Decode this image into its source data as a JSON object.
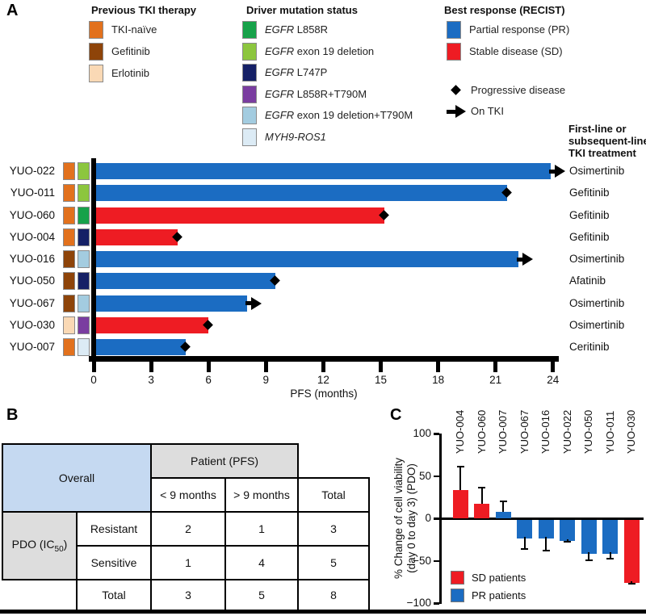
{
  "figure": {
    "panel_a_label": "A",
    "panel_b_label": "B",
    "panel_c_label": "C"
  },
  "colors": {
    "tki": {
      "TKI-naïve": "#E2711D",
      "Gefitinib": "#8E4409",
      "Erlotinib": "#FAD9B5"
    },
    "mutation": {
      "EGFR L858R": "#17A24A",
      "EGFR exon 19 deletion": "#8CC63E",
      "EGFR L747P": "#152066",
      "EGFR L858R+T790M": "#7A3DA0",
      "EGFR exon 19 deletion+T790M": "#A3CCE0",
      "MYH9-ROS1": "#DCEBF5"
    },
    "response": {
      "PR": "#1B6CC2",
      "SD": "#EE1C23"
    },
    "table_header_blue": "#C5D9F1",
    "table_header_gray": "#DDDDDD"
  },
  "panel_a": {
    "legends": {
      "previous_tki": {
        "title": "Previous TKI therapy",
        "items": [
          {
            "label": "TKI-naïve",
            "color": "#E2711D"
          },
          {
            "label": "Gefitinib",
            "color": "#8E4409"
          },
          {
            "label": "Erlotinib",
            "color": "#FAD9B5"
          }
        ]
      },
      "driver_mutation": {
        "title": "Driver mutation status",
        "items": [
          {
            "italic": "EGFR",
            "rest": " L858R",
            "color": "#17A24A"
          },
          {
            "italic": "EGFR",
            "rest": " exon 19 deletion",
            "color": "#8CC63E"
          },
          {
            "italic": "EGFR",
            "rest": " L747P",
            "color": "#152066"
          },
          {
            "italic": "EGFR",
            "rest": " L858R+T790M",
            "color": "#7A3DA0"
          },
          {
            "italic": "EGFR",
            "rest": " exon 19 deletion+T790M",
            "color": "#A3CCE0"
          },
          {
            "italic": "MYH9-ROS1",
            "rest": "",
            "color": "#DCEBF5"
          }
        ]
      },
      "best_response": {
        "title": "Best response (RECIST)",
        "items": [
          {
            "label": "Partial response (PR)",
            "color": "#1B6CC2"
          },
          {
            "label": "Stable disease (SD)",
            "color": "#EE1C23"
          }
        ],
        "markers": [
          {
            "label": "Progressive disease",
            "symbol": "diamond"
          },
          {
            "label": "On TKI",
            "symbol": "arrow"
          }
        ]
      }
    },
    "treatment_header": "First-line or subsequent-line TKI treatment"
  },
  "chart_data": [
    {
      "id": "pfs-by-patient",
      "type": "bar",
      "orientation": "horizontal",
      "xlabel": "PFS (months)",
      "xlim": [
        0,
        24
      ],
      "xticks": [
        0,
        3,
        6,
        9,
        12,
        15,
        18,
        21,
        24
      ],
      "rows": [
        {
          "patient": "YUO-022",
          "pfs_months": 23.9,
          "response": "PR",
          "event_marker": "on-tki",
          "previous_tki": "TKI-naïve",
          "mutation": "EGFR exon 19 deletion",
          "treatment": "Osimertinib"
        },
        {
          "patient": "YUO-011",
          "pfs_months": 21.6,
          "response": "PR",
          "event_marker": "progressive-disease",
          "previous_tki": "TKI-naïve",
          "mutation": "EGFR exon 19 deletion",
          "treatment": "Gefitinib"
        },
        {
          "patient": "YUO-060",
          "pfs_months": 15.2,
          "response": "SD",
          "event_marker": "progressive-disease",
          "previous_tki": "TKI-naïve",
          "mutation": "EGFR L858R",
          "treatment": "Gefitinib"
        },
        {
          "patient": "YUO-004",
          "pfs_months": 4.4,
          "response": "SD",
          "event_marker": "progressive-disease",
          "previous_tki": "TKI-naïve",
          "mutation": "EGFR L747P",
          "treatment": "Gefitinib"
        },
        {
          "patient": "YUO-016",
          "pfs_months": 22.2,
          "response": "PR",
          "event_marker": "on-tki",
          "previous_tki": "Gefitinib",
          "mutation": "EGFR exon 19 deletion+T790M",
          "treatment": "Osimertinib"
        },
        {
          "patient": "YUO-050",
          "pfs_months": 9.5,
          "response": "PR",
          "event_marker": "progressive-disease",
          "previous_tki": "Gefitinib",
          "mutation": "EGFR L747P",
          "treatment": "Afatinib"
        },
        {
          "patient": "YUO-067",
          "pfs_months": 8.0,
          "response": "PR",
          "event_marker": "on-tki",
          "previous_tki": "Gefitinib",
          "mutation": "EGFR exon 19 deletion+T790M",
          "treatment": "Osimertinib"
        },
        {
          "patient": "YUO-030",
          "pfs_months": 6.0,
          "response": "SD",
          "event_marker": "progressive-disease",
          "previous_tki": "Erlotinib",
          "mutation": "EGFR L858R+T790M",
          "treatment": "Osimertinib"
        },
        {
          "patient": "YUO-007",
          "pfs_months": 4.8,
          "response": "PR",
          "event_marker": "progressive-disease",
          "previous_tki": "TKI-naïve",
          "mutation": "MYH9-ROS1",
          "treatment": "Ceritinib"
        }
      ]
    },
    {
      "id": "pdo-vs-pfs-table",
      "type": "table",
      "corner_label": "Overall",
      "col_group": "Patient (PFS)",
      "col_headers": [
        "< 9 months",
        "> 9 months",
        "Total"
      ],
      "row_group_pre": "PDO (IC",
      "row_group_sub": "50",
      "row_group_post": ")",
      "rows": [
        {
          "label": "Resistant",
          "values": [
            "2",
            "1",
            "3"
          ]
        },
        {
          "label": "Sensitive",
          "values": [
            "1",
            "4",
            "5"
          ]
        },
        {
          "label": "Total",
          "values": [
            "3",
            "5",
            "8"
          ]
        }
      ]
    },
    {
      "id": "pdo-viability",
      "type": "bar",
      "orientation": "vertical",
      "ylabel_line1": "% Change of cell viability",
      "ylabel_line2": "(day 0 to day 3) (PDO)",
      "ylim": [
        -100,
        100
      ],
      "yticks": [
        100,
        50,
        0,
        -50,
        -100
      ],
      "categories": [
        "YUO-004",
        "YUO-060",
        "YUO-007",
        "YUO-067",
        "YUO-016",
        "YUO-022",
        "YUO-050",
        "YUO-011",
        "YUO-030"
      ],
      "values": [
        33,
        17,
        8,
        -22,
        -22,
        -25,
        -40,
        -40,
        -74
      ],
      "errors": [
        29,
        20,
        13,
        15,
        17,
        4,
        10,
        9,
        4
      ],
      "groups": [
        "SD",
        "SD",
        "PR",
        "PR",
        "PR",
        "PR",
        "PR",
        "PR",
        "SD"
      ],
      "legend": [
        {
          "label": "SD patients",
          "group": "SD",
          "color": "#EE1C23"
        },
        {
          "label": "PR patients",
          "group": "PR",
          "color": "#1B6CC2"
        }
      ]
    }
  ]
}
